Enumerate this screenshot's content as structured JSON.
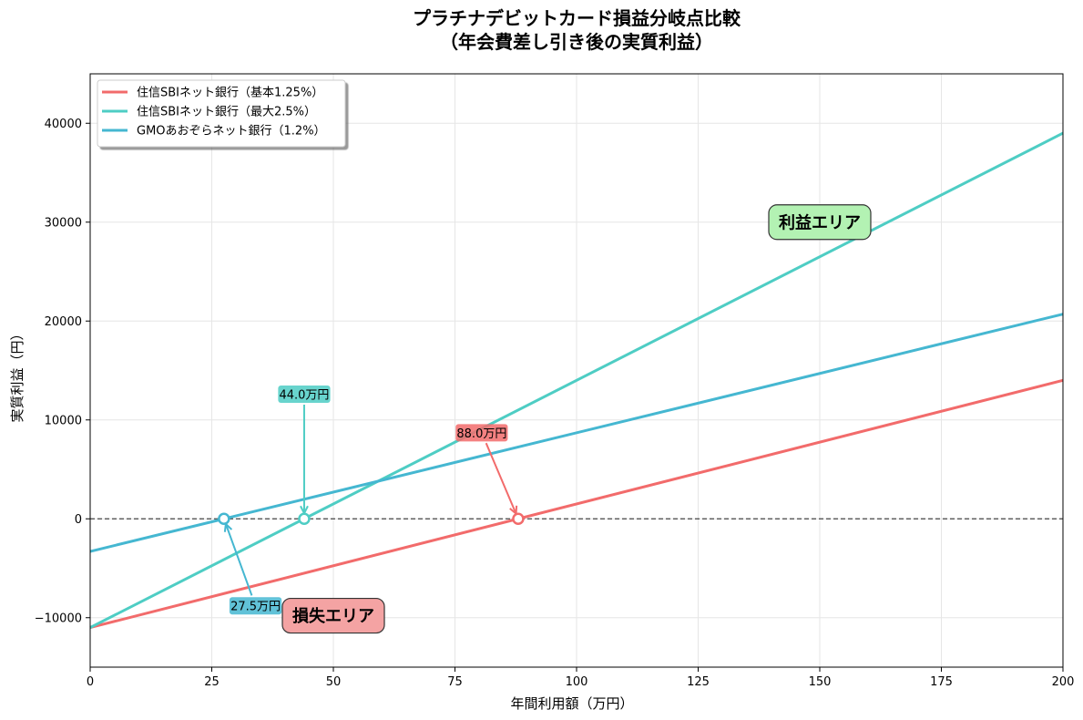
{
  "chart_data": {
    "type": "line",
    "title_lines": [
      "プラチナデビットカード損益分岐点比較",
      "（年会費差し引き後の実質利益）"
    ],
    "xlabel": "年間利用額（万円）",
    "ylabel": "実質利益（円）",
    "xlim": [
      0,
      200
    ],
    "ylim": [
      -15000,
      45000
    ],
    "xticks": [
      0,
      25,
      50,
      75,
      100,
      125,
      150,
      175,
      200
    ],
    "yticks": [
      -10000,
      0,
      10000,
      20000,
      30000,
      40000
    ],
    "ytick_labels": [
      "−10000",
      "0",
      "10000",
      "20000",
      "30000",
      "40000"
    ],
    "grid": true,
    "legend_position": "top-left",
    "series": [
      {
        "name": "住信SBIネット銀行（基本1.25%）",
        "color": "#f26b6b",
        "x": [
          0,
          200
        ],
        "y": [
          -11000,
          14000
        ]
      },
      {
        "name": "住信SBIネット銀行（最大2.5%）",
        "color": "#4ecdc4",
        "x": [
          0,
          200
        ],
        "y": [
          -11000,
          39000
        ]
      },
      {
        "name": "GMOあおぞらネット銀行（1.2%）",
        "color": "#45b7d1",
        "x": [
          0,
          200
        ],
        "y": [
          -3300,
          20700
        ]
      }
    ],
    "zero_line": {
      "y": 0,
      "style": "dashed",
      "color": "#444444"
    },
    "breakeven_points": [
      {
        "x": 88.0,
        "label": "88.0万円",
        "color": "#f26b6b",
        "label_x": 80.5,
        "label_y": 8700
      },
      {
        "x": 44.0,
        "label": "44.0万円",
        "color": "#4ecdc4",
        "label_x": 44.0,
        "label_y": 12600
      },
      {
        "x": 27.5,
        "label": "27.5万円",
        "color": "#45b7d1",
        "label_x": 34.0,
        "label_y": -8800
      }
    ],
    "annotations": [
      {
        "text": "利益エリア",
        "x": 150,
        "y": 30000,
        "background": "#b3f2b3"
      },
      {
        "text": "損失エリア",
        "x": 50,
        "y": -9800,
        "background": "#f4a3a3"
      }
    ]
  }
}
